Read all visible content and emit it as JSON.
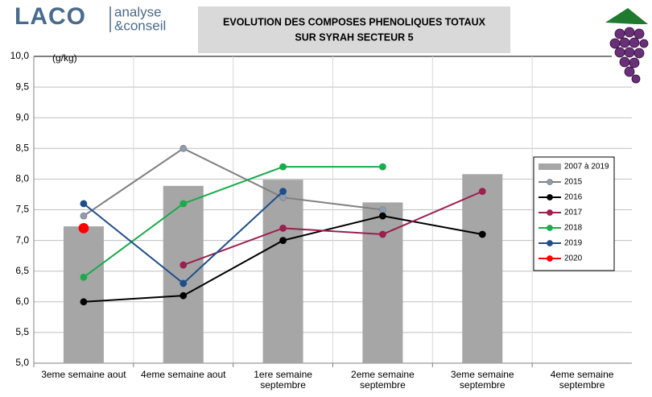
{
  "logo": {
    "name": "LACO",
    "tagline": [
      "analyse",
      "&conseil"
    ]
  },
  "chart_data": {
    "type": "combo",
    "title": [
      "EVOLUTION DES COMPOSES PHENOLIQUES TOTAUX",
      "SUR SYRAH SECTEUR 5"
    ],
    "y_label": "(g/kg)",
    "categories": [
      "3eme semaine aout",
      "4eme semaine aout",
      "1ere semaine septembre",
      "2eme semaine septembre",
      "3eme semaine septembre",
      "4eme semaine septembre"
    ],
    "ylim": [
      5,
      10
    ],
    "yticks": [
      {
        "value": 5,
        "label": "5,0"
      },
      {
        "value": 5.5,
        "label": "5,5"
      },
      {
        "value": 6,
        "label": "6,0"
      },
      {
        "value": 6.5,
        "label": "6,5"
      },
      {
        "value": 7,
        "label": "7,0"
      },
      {
        "value": 7.5,
        "label": "7,5"
      },
      {
        "value": 8,
        "label": "8,0"
      },
      {
        "value": 8.5,
        "label": "8,5"
      },
      {
        "value": 9,
        "label": "9,0"
      },
      {
        "value": 9.5,
        "label": "9,5"
      },
      {
        "value": 10,
        "label": "10,0"
      }
    ],
    "grid": true,
    "series": [
      {
        "name": "2007 à 2019",
        "type": "bar",
        "color": "#a6a6a6",
        "values": [
          7.23,
          7.89,
          7.99,
          7.62,
          8.08,
          null
        ]
      },
      {
        "name": "2015",
        "type": "line",
        "color": "#808080",
        "marker_color": "#8e9cb3",
        "values": [
          7.4,
          8.5,
          7.7,
          7.5,
          null,
          null
        ]
      },
      {
        "name": "2016",
        "type": "line",
        "color": "#000000",
        "marker_color": "#000000",
        "values": [
          6.0,
          6.1,
          7.0,
          7.4,
          7.1,
          null
        ]
      },
      {
        "name": "2017",
        "type": "line",
        "color": "#9b1f4f",
        "marker_color": "#9b1f4f",
        "values": [
          null,
          6.6,
          7.2,
          7.1,
          7.8,
          null
        ]
      },
      {
        "name": "2018",
        "type": "line",
        "color": "#1aab4b",
        "marker_color": "#1aab4b",
        "values": [
          6.4,
          7.6,
          8.2,
          8.2,
          null,
          null
        ]
      },
      {
        "name": "2019",
        "type": "line",
        "color": "#1f4e8c",
        "marker_color": "#1f4e8c",
        "values": [
          7.6,
          6.3,
          7.8,
          null,
          null,
          null
        ]
      },
      {
        "name": "2020",
        "type": "line",
        "color": "#ff0000",
        "marker_color": "#ff0000",
        "marker_size": 6,
        "values": [
          7.2,
          null,
          null,
          null,
          null,
          null
        ]
      }
    ]
  }
}
